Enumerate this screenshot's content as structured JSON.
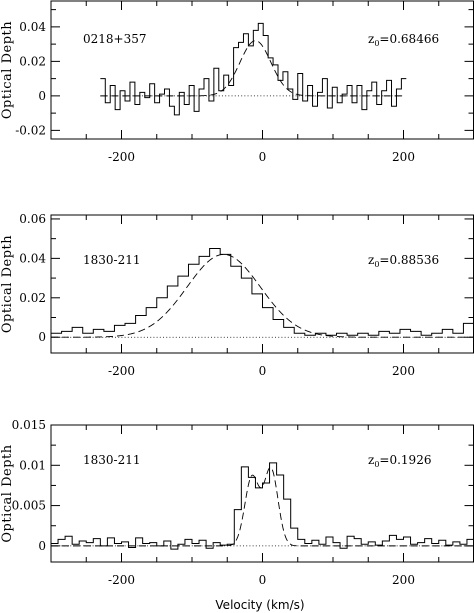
{
  "figure": {
    "xlabel": "Velocity (km/s)"
  },
  "chart_data": [
    {
      "type": "line",
      "source_label": "0218+357",
      "redshift_label": "z",
      "redshift_sub": "0",
      "redshift_value": "=0.68466",
      "ylabel": "Optical Depth",
      "xlim": [
        -300,
        300
      ],
      "ylim": [
        -0.025,
        0.055
      ],
      "xticks": [
        -200,
        0,
        200
      ],
      "xtick_labels": [
        "-200",
        "0",
        "200"
      ],
      "yticks": [
        -0.02,
        0,
        0.02,
        0.04
      ],
      "ytick_labels": [
        "-0.02",
        "0",
        "0.02",
        "0.04"
      ],
      "zero_line": [
        -230,
        200
      ],
      "series": [
        {
          "style": "histogram",
          "x": [
            -230,
            -223,
            -216,
            -209,
            -202,
            -195,
            -188,
            -181,
            -174,
            -167,
            -160,
            -153,
            -146,
            -139,
            -132,
            -125,
            -118,
            -111,
            -104,
            -97,
            -90,
            -83,
            -76,
            -69,
            -62,
            -55,
            -48,
            -41,
            -34,
            -27,
            -20,
            -13,
            -6,
            1,
            8,
            15,
            22,
            29,
            36,
            43,
            50,
            57,
            64,
            71,
            78,
            85,
            92,
            99,
            106,
            113,
            120,
            127,
            134,
            141,
            148,
            155,
            162,
            169,
            176,
            183,
            190,
            197
          ],
          "y": [
            0.01,
            -0.004,
            0.006,
            -0.008,
            0.003,
            -0.003,
            0.008,
            -0.005,
            0.002,
            -0.001,
            0.007,
            -0.004,
            0.001,
            0.004,
            -0.006,
            -0.011,
            0.002,
            -0.005,
            0.006,
            -0.009,
            0.004,
            0.01,
            -0.003,
            0.016,
            0.003,
            0.012,
            0.006,
            0.028,
            0.031,
            0.036,
            0.029,
            0.038,
            0.042,
            0.035,
            0.022,
            0.018,
            0.009,
            0.014,
            0.004,
            -0.002,
            0.013,
            -0.003,
            0.006,
            -0.006,
            0.002,
            0.01,
            -0.007,
            0.005,
            -0.004,
            0.001,
            0.006,
            -0.004,
            0.006,
            -0.008,
            0.003,
            0.008,
            -0.005,
            0.003,
            0.009,
            -0.006,
            0.004,
            0.01
          ]
        },
        {
          "style": "dashed",
          "gaussians": [
            {
              "amp": 0.032,
              "center": -10,
              "sigma": 22
            }
          ],
          "x_range": [
            -230,
            200
          ]
        }
      ]
    },
    {
      "type": "line",
      "source_label": "1830-211",
      "redshift_label": "z",
      "redshift_sub": "0",
      "redshift_value": "=0.88536",
      "ylabel": "Optical Depth",
      "xlim": [
        -300,
        300
      ],
      "ylim": [
        -0.008,
        0.062
      ],
      "xticks": [
        -200,
        0,
        200
      ],
      "xtick_labels": [
        "-200",
        "0",
        "200"
      ],
      "yticks": [
        0,
        0.02,
        0.04,
        0.06
      ],
      "ytick_labels": [
        "0",
        "0.02",
        "0.04",
        "0.06"
      ],
      "zero_line": [
        -300,
        300
      ],
      "series": [
        {
          "style": "histogram",
          "x": [
            -300,
            -285,
            -270,
            -255,
            -240,
            -225,
            -210,
            -195,
            -180,
            -165,
            -150,
            -135,
            -120,
            -105,
            -90,
            -75,
            -60,
            -45,
            -30,
            -15,
            0,
            15,
            30,
            45,
            60,
            75,
            90,
            105,
            120,
            135,
            150,
            165,
            180,
            195,
            210,
            225,
            240,
            255,
            270,
            285
          ],
          "y": [
            0.002,
            0.003,
            0.005,
            0.002,
            0.004,
            0.003,
            0.006,
            0.007,
            0.011,
            0.015,
            0.02,
            0.026,
            0.031,
            0.037,
            0.041,
            0.045,
            0.042,
            0.036,
            0.03,
            0.022,
            0.015,
            0.009,
            0.005,
            0.002,
            0.001,
            0.002,
            0.001,
            0.002,
            0.001,
            0.002,
            0.001,
            0.003,
            0.002,
            0.004,
            0.003,
            0.001,
            0.002,
            0.004,
            0.002,
            0.007
          ]
        },
        {
          "style": "dashed",
          "gaussians": [
            {
              "amp": 0.042,
              "center": -55,
              "sigma": 52
            }
          ],
          "x_range": [
            -300,
            300
          ]
        }
      ]
    },
    {
      "type": "line",
      "source_label": "1830-211",
      "redshift_label": "z",
      "redshift_sub": "0",
      "redshift_value": "=0.1926",
      "ylabel": "Optical Depth",
      "xlim": [
        -300,
        300
      ],
      "ylim": [
        -0.002,
        0.015
      ],
      "xticks": [
        -200,
        0,
        200
      ],
      "xtick_labels": [
        "-200",
        "0",
        "200"
      ],
      "yticks": [
        0,
        0.005,
        0.01,
        0.015
      ],
      "ytick_labels": [
        "0",
        "0.005",
        "0.01",
        "0.015"
      ],
      "zero_line": [
        -300,
        300
      ],
      "series": [
        {
          "style": "histogram",
          "x": [
            -300,
            -290,
            -280,
            -270,
            -260,
            -250,
            -240,
            -230,
            -220,
            -210,
            -200,
            -190,
            -180,
            -170,
            -160,
            -150,
            -140,
            -130,
            -120,
            -110,
            -100,
            -90,
            -80,
            -70,
            -60,
            -50,
            -40,
            -30,
            -20,
            -10,
            0,
            10,
            20,
            30,
            40,
            50,
            60,
            70,
            80,
            90,
            100,
            110,
            120,
            130,
            140,
            150,
            160,
            170,
            180,
            190,
            200,
            210,
            220,
            230,
            240,
            250,
            260,
            270,
            280,
            290
          ],
          "y": [
            0.0003,
            0.0008,
            0.0012,
            0.0002,
            0.0006,
            0.0004,
            0.0009,
            0.0,
            0.001,
            0.0003,
            0.0005,
            -0.0002,
            0.001,
            0.0003,
            0.0004,
            0.0,
            0.0006,
            -0.0004,
            0.0002,
            0.0008,
            0.0003,
            0.0007,
            -0.0003,
            0.0004,
            0.0001,
            0.0002,
            0.0045,
            0.0098,
            0.0085,
            0.0072,
            0.0078,
            0.0103,
            0.0088,
            0.0058,
            0.0022,
            0.0008,
            0.0003,
            0.0007,
            0.0002,
            0.0011,
            0.0004,
            -0.0003,
            0.0012,
            0.0009,
            0.0002,
            0.0005,
            0.0001,
            0.0006,
            0.0013,
            0.0008,
            0.0011,
            0.0002,
            0.0004,
            0.0009,
            0.0003,
            0.0007,
            0.0001,
            0.0005,
            0.0002,
            0.0008
          ]
        },
        {
          "style": "dashed",
          "gaussians": [
            {
              "amp": 0.0085,
              "center": -15,
              "sigma": 10
            },
            {
              "amp": 0.0095,
              "center": 12,
              "sigma": 10
            }
          ],
          "x_range": [
            -300,
            300
          ]
        }
      ]
    }
  ]
}
